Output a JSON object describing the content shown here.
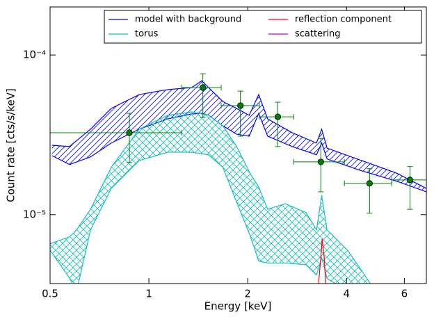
{
  "chart_data": {
    "type": "line",
    "xlabel": "Energy [keV]",
    "ylabel": "Count rate [cts/s/keV]",
    "xscale": "log",
    "yscale": "log",
    "xlim": [
      0.5,
      7.0
    ],
    "ylim": [
      3.7e-06,
      0.0002
    ],
    "xticks": [
      0.5,
      1,
      2,
      4,
      6
    ],
    "yticks": [
      {
        "value": 1e-05,
        "label": "10⁻⁵"
      },
      {
        "value": 0.0001,
        "label": "10⁻⁴"
      }
    ],
    "legend": "upper right",
    "bands": [
      {
        "name": "model with background",
        "color": "#0000ff",
        "hatch": "diagonal",
        "x": [
          0.507,
          0.573,
          0.664,
          0.768,
          0.934,
          1.14,
          1.35,
          1.45,
          1.52,
          1.68,
          1.85,
          2.02,
          2.16,
          2.3,
          2.73,
          3.24,
          3.36,
          3.49,
          4.45,
          5.68,
          7.0
        ],
        "upper": [
          2.72e-05,
          2.67e-05,
          3.43e-05,
          4.63e-05,
          5.65e-05,
          6.07e-05,
          6.25e-05,
          6.9e-05,
          6.25e-05,
          5.11e-05,
          4.63e-05,
          4.19e-05,
          5.65e-05,
          3.98e-05,
          3.26e-05,
          2.81e-05,
          3.43e-05,
          2.61e-05,
          2.18e-05,
          1.82e-05,
          1.46e-05
        ],
        "lower": [
          2.34e-05,
          2.06e-05,
          2.3e-05,
          2.81e-05,
          3.43e-05,
          3.98e-05,
          4.27e-05,
          4.31e-05,
          4.19e-05,
          3.6e-05,
          3.19e-05,
          3.1e-05,
          4.31e-05,
          3.1e-05,
          2.67e-05,
          2.37e-05,
          2.81e-05,
          2.23e-05,
          1.88e-05,
          1.62e-05,
          1.39e-05
        ]
      },
      {
        "name": "torus",
        "color": "#17bebe",
        "hatch": "cross",
        "x": [
          0.5,
          0.573,
          0.602,
          0.664,
          0.768,
          0.934,
          1.14,
          1.35,
          1.52,
          1.68,
          1.85,
          2.04,
          2.16,
          2.3,
          2.6,
          3.01,
          3.24,
          3.36,
          3.49,
          4.04,
          4.91
        ],
        "upper": [
          6.56e-06,
          7.26e-06,
          8.02e-06,
          1.08e-05,
          1.98e-05,
          3.43e-05,
          4.19e-05,
          4.4e-05,
          4.19e-05,
          3.6e-05,
          2.67e-05,
          1.79e-05,
          1.49e-05,
          1.08e-05,
          1.17e-05,
          1.03e-05,
          8.02e-06,
          1.32e-05,
          8.02e-06,
          5.94e-06,
          3.3e-06
        ],
        "lower": [
          6e-06,
          4e-06,
          3.3e-06,
          8.02e-06,
          1.46e-05,
          2.18e-05,
          2.46e-05,
          2.46e-05,
          2.37e-05,
          1.98e-05,
          1.2e-05,
          7.26e-06,
          5.12e-06,
          4.97e-06,
          4.97e-06,
          4.86e-06,
          4.19e-06,
          5.37e-06,
          3.98e-06,
          3.3e-06,
          3.3e-06
        ]
      }
    ],
    "series": [
      {
        "name": "reflection component",
        "color": "#ff0000",
        "x": [
          3.27,
          3.34,
          3.37,
          3.42,
          3.47
        ],
        "values": [
          3.3e-06,
          5.37e-06,
          7.05e-06,
          5.37e-06,
          3.3e-06
        ]
      },
      {
        "name": "scattering",
        "color": "#bf00bf",
        "x": [],
        "values": []
      }
    ],
    "points": {
      "color": "#008000",
      "x": [
        0.872,
        1.46,
        1.9,
        2.47,
        3.34,
        4.7,
        6.24
      ],
      "values": [
        3.26e-05,
        6.25e-05,
        4.82e-05,
        4.1e-05,
        2.14e-05,
        1.57e-05,
        1.65e-05
      ],
      "x_low": [
        0.5,
        1.26,
        1.66,
        2.17,
        2.76,
        3.94,
        5.49
      ],
      "x_high": [
        1.26,
        1.66,
        2.17,
        2.76,
        3.94,
        5.49,
        7.0
      ],
      "y_low": [
        2.12e-05,
        4.06e-05,
        3.1e-05,
        2.67e-05,
        1.39e-05,
        1.02e-05,
        1.08e-05
      ],
      "y_high": [
        4.31e-05,
        7.63e-05,
        5.94e-05,
        5.06e-05,
        3e-05,
        1.94e-05,
        2e-05
      ]
    }
  }
}
